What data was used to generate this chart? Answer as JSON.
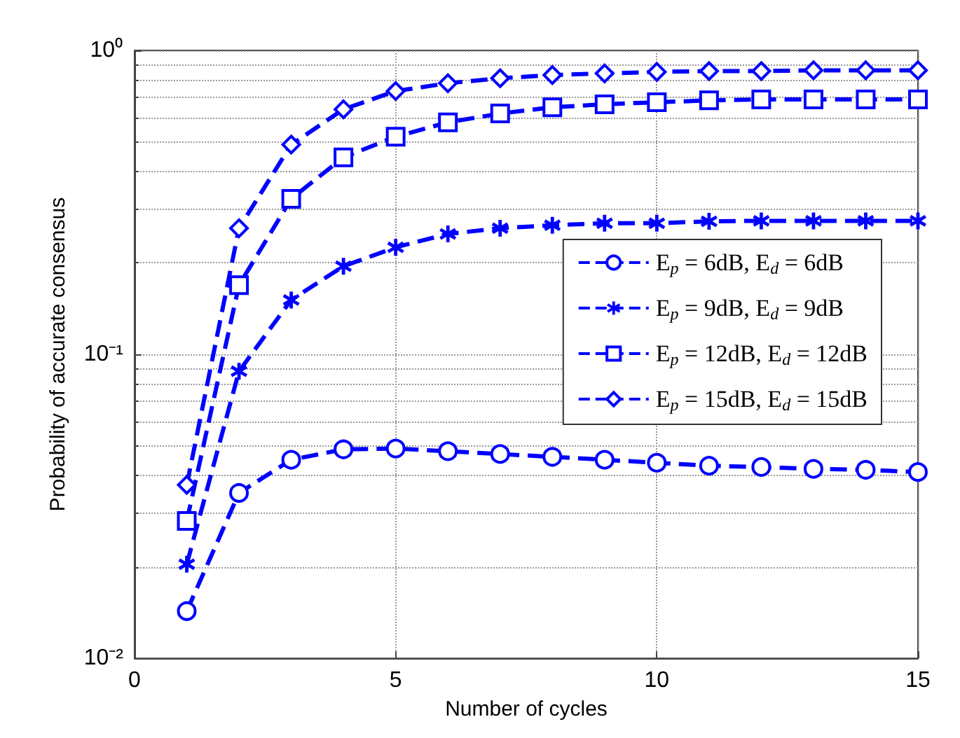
{
  "chart_data": {
    "type": "line",
    "xlabel": "Number of cycles",
    "ylabel": "Probability of accurate consensus",
    "x": [
      1,
      2,
      3,
      4,
      5,
      6,
      7,
      8,
      9,
      10,
      11,
      12,
      13,
      14,
      15
    ],
    "series": [
      {
        "name": "E$_{p}$ = 6dB, E$_{d}$ = 6dB",
        "color": "#0000ff",
        "marker": "circle",
        "values": [
          0.0143,
          0.035,
          0.045,
          0.0487,
          0.049,
          0.048,
          0.047,
          0.046,
          0.045,
          0.044,
          0.043,
          0.0426,
          0.042,
          0.0417,
          0.041
        ]
      },
      {
        "name": "E$_{p}$ = 9dB, E$_{d}$ = 9dB",
        "color": "#0000ff",
        "marker": "star",
        "values": [
          0.0204,
          0.088,
          0.151,
          0.195,
          0.225,
          0.249,
          0.26,
          0.266,
          0.27,
          0.27,
          0.274,
          0.275,
          0.275,
          0.275,
          0.275
        ]
      },
      {
        "name": "E$_{p}$ = 12dB, E$_{d}$ = 12dB",
        "color": "#0000ff",
        "marker": "square",
        "values": [
          0.0283,
          0.169,
          0.325,
          0.445,
          0.52,
          0.58,
          0.62,
          0.65,
          0.665,
          0.675,
          0.685,
          0.69,
          0.69,
          0.69,
          0.69
        ]
      },
      {
        "name": "E$_{p}$ = 15dB, E$_{d}$ = 15dB",
        "color": "#0000ff",
        "marker": "diamond",
        "values": [
          0.0372,
          0.26,
          0.49,
          0.64,
          0.735,
          0.78,
          0.81,
          0.83,
          0.84,
          0.85,
          0.855,
          0.855,
          0.86,
          0.86,
          0.86
        ]
      }
    ],
    "line_style": "dashed",
    "log": "y",
    "grid": true,
    "legend": "right",
    "xlim": [
      0,
      15
    ],
    "xticks": [
      0,
      5,
      10,
      15
    ],
    "ylim": [
      0.01,
      1
    ],
    "yticks": [
      {
        "value": 0.01,
        "label": "10⁻²"
      },
      {
        "value": 0.1,
        "label": "10⁻¹"
      },
      {
        "value": 1,
        "label": "10⁰"
      }
    ]
  }
}
